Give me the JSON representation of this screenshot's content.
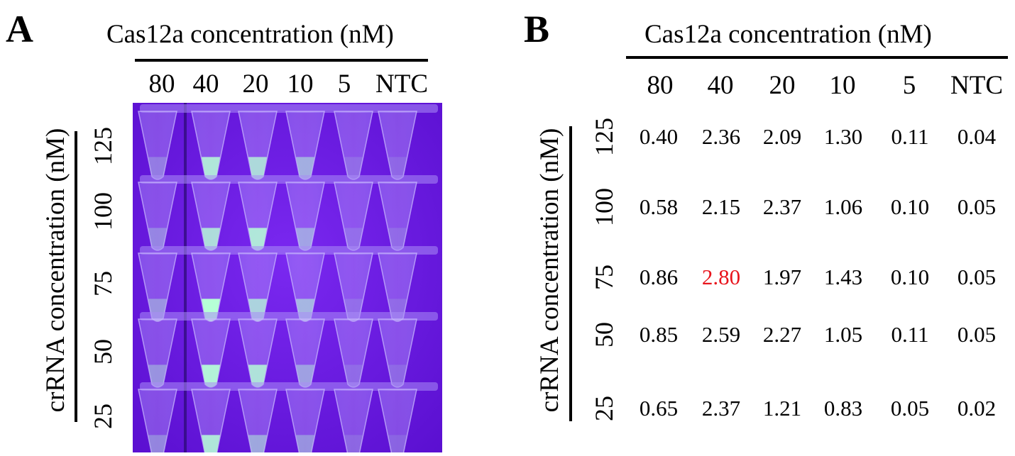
{
  "panel_a": {
    "letter": "A",
    "column_title": "Cas12a concentration (nM)",
    "row_title": "crRNA concentration (nM)",
    "columns": [
      "80",
      "40",
      "20",
      "10",
      "5",
      "NTC"
    ],
    "rows": [
      "125",
      "100",
      "75",
      "50",
      "25"
    ],
    "photo": {
      "background_color": "#6a16e0",
      "fluorescence_color": "#b6ffd6",
      "tube_intensity": [
        [
          0.4,
          2.36,
          2.09,
          1.3,
          0.11,
          0.04
        ],
        [
          0.58,
          2.15,
          2.37,
          1.06,
          0.1,
          0.05
        ],
        [
          0.86,
          2.8,
          1.97,
          1.43,
          0.1,
          0.05
        ],
        [
          0.85,
          2.59,
          2.27,
          1.05,
          0.11,
          0.05
        ],
        [
          0.65,
          2.37,
          1.21,
          0.83,
          0.05,
          0.02
        ]
      ]
    }
  },
  "panel_b": {
    "letter": "B",
    "column_title": "Cas12a concentration (nM)",
    "row_title": "crRNA concentration (nM)",
    "columns": [
      "80",
      "40",
      "20",
      "10",
      "5",
      "NTC"
    ],
    "rows": [
      {
        "label": "125",
        "values": [
          "0.40",
          "2.36",
          "2.09",
          "1.30",
          "0.11",
          "0.04"
        ]
      },
      {
        "label": "100",
        "values": [
          "0.58",
          "2.15",
          "2.37",
          "1.06",
          "0.10",
          "0.05"
        ]
      },
      {
        "label": "75",
        "values": [
          "0.86",
          "2.80",
          "1.97",
          "1.43",
          "0.10",
          "0.05"
        ]
      },
      {
        "label": "50",
        "values": [
          "0.85",
          "2.59",
          "2.27",
          "1.05",
          "0.11",
          "0.05"
        ]
      },
      {
        "label": "25",
        "values": [
          "0.65",
          "2.37",
          "1.21",
          "0.83",
          "0.05",
          "0.02"
        ]
      }
    ],
    "highlight": {
      "row": 2,
      "col": 1,
      "color": "#e8141c"
    },
    "text_color": "#000000"
  }
}
